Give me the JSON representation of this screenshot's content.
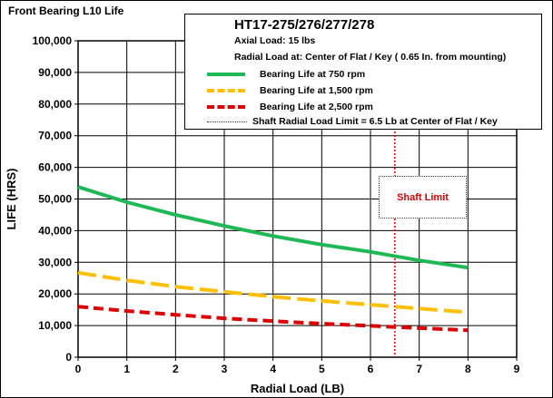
{
  "chart_data": {
    "type": "line",
    "title": "Front Bearing L10 Life",
    "xlabel": "Radial Load (LB)",
    "ylabel": "LIFE (HRS)",
    "xlim": [
      0,
      9
    ],
    "ylim": [
      0,
      100000
    ],
    "x_ticks": [
      0,
      1,
      2,
      3,
      4,
      5,
      6,
      7,
      8,
      9
    ],
    "y_ticks": [
      0,
      10000,
      20000,
      30000,
      40000,
      50000,
      60000,
      70000,
      80000,
      90000,
      100000
    ],
    "y_tick_labels": [
      "0",
      "10,000",
      "20,000",
      "30,000",
      "40,000",
      "50,000",
      "60,000",
      "70,000",
      "80,000",
      "90,000",
      "100,000"
    ],
    "grid": true,
    "legend_placement": "top-right",
    "legend": {
      "title": "HT17-275/276/277/278",
      "axial_load": "Axial Load:  15 lbs",
      "radial_load": "Radial Load at:  Center of Flat / Key  ( 0.65 In. from mounting)"
    },
    "series": [
      {
        "name": "Bearing Life at 750 rpm",
        "color": "#1db954",
        "style": "solid",
        "x": [
          0,
          1,
          2,
          3,
          4,
          5,
          6,
          7,
          8
        ],
        "y": [
          53800,
          49000,
          45000,
          41500,
          38300,
          35600,
          33300,
          30600,
          28300
        ]
      },
      {
        "name": "Bearing Life at 1,500 rpm",
        "color": "#ffc000",
        "style": "dashed",
        "x": [
          0,
          1,
          2,
          3,
          4,
          5,
          6,
          7,
          8
        ],
        "y": [
          26700,
          24300,
          22300,
          20700,
          19100,
          17800,
          16600,
          15400,
          14200
        ]
      },
      {
        "name": "Bearing Life at 2,500 rpm",
        "color": "#e00000",
        "style": "dashed",
        "x": [
          0,
          1,
          2,
          3,
          4,
          5,
          6,
          7,
          8
        ],
        "y": [
          16000,
          14600,
          13400,
          12300,
          11400,
          10600,
          9900,
          9200,
          8500
        ]
      }
    ],
    "limit_line": {
      "name": "Shaft Radial Load Limit  =  6.5 Lb at Center of Flat / Key",
      "x": 6.5,
      "color": "#e00000",
      "label": "Shaft Limit"
    }
  }
}
